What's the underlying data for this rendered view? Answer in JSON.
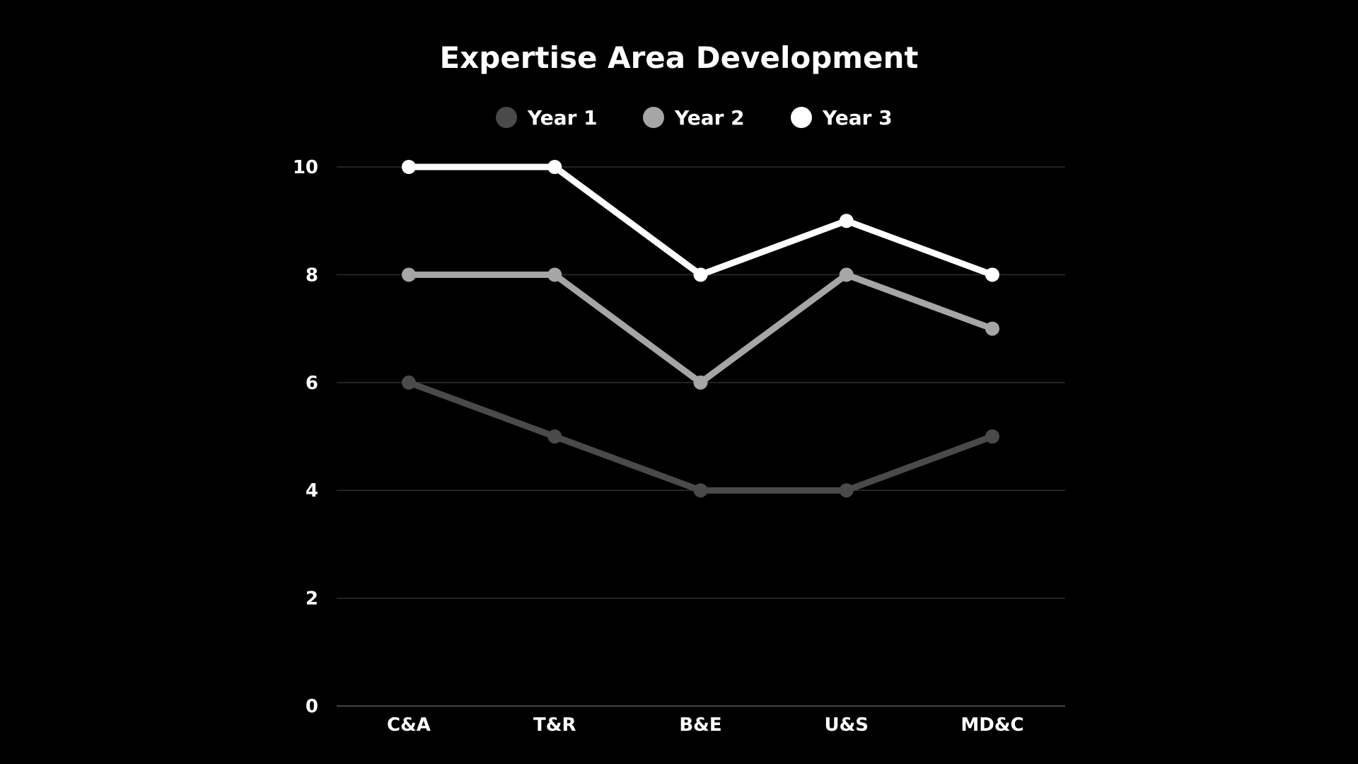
{
  "chart_data": {
    "type": "line",
    "title": "Expertise Area Development",
    "xlabel": "",
    "ylabel": "",
    "categories": [
      "C&A",
      "T&R",
      "B&E",
      "U&S",
      "MD&C"
    ],
    "ylim": [
      0,
      10
    ],
    "yticks": [
      "0",
      "2",
      "4",
      "6",
      "8",
      "10"
    ],
    "grid": true,
    "legend_position": "top-center",
    "series": [
      {
        "name": "Year 1",
        "color": "#4a4a4a",
        "values": [
          6,
          5,
          4,
          4,
          5
        ]
      },
      {
        "name": "Year 2",
        "color": "#a6a6a6",
        "values": [
          8,
          8,
          6,
          8,
          7
        ]
      },
      {
        "name": "Year 3",
        "color": "#ffffff",
        "values": [
          10,
          10,
          8,
          9,
          8
        ]
      }
    ]
  }
}
